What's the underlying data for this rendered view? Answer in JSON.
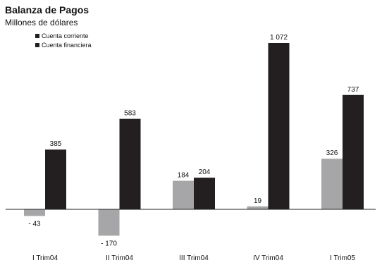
{
  "title": "Balanza de Pagos",
  "subtitle": "Millones de dólares",
  "colors": {
    "corriente": "#a6a6a8",
    "financiera": "#231f20",
    "axis": "#222222"
  },
  "chart_data": {
    "type": "bar",
    "title": "Balanza de Pagos",
    "subtitle": "Millones de dólares",
    "categories": [
      "I Trim04",
      "II Trim04",
      "III Trim04",
      "IV  Trim04",
      "I Trim05"
    ],
    "series": [
      {
        "name": "Cuenta corriente",
        "values": [
          -43,
          -170,
          184,
          19,
          326
        ],
        "labels": [
          "- 43",
          "- 170",
          "184",
          "19",
          "326"
        ]
      },
      {
        "name": "Cuenta financiera",
        "values": [
          385,
          583,
          204,
          1072,
          737
        ],
        "labels": [
          "385",
          "583",
          "204",
          "1 072",
          "737"
        ]
      }
    ],
    "legend_position": "top-left",
    "grid": false
  }
}
